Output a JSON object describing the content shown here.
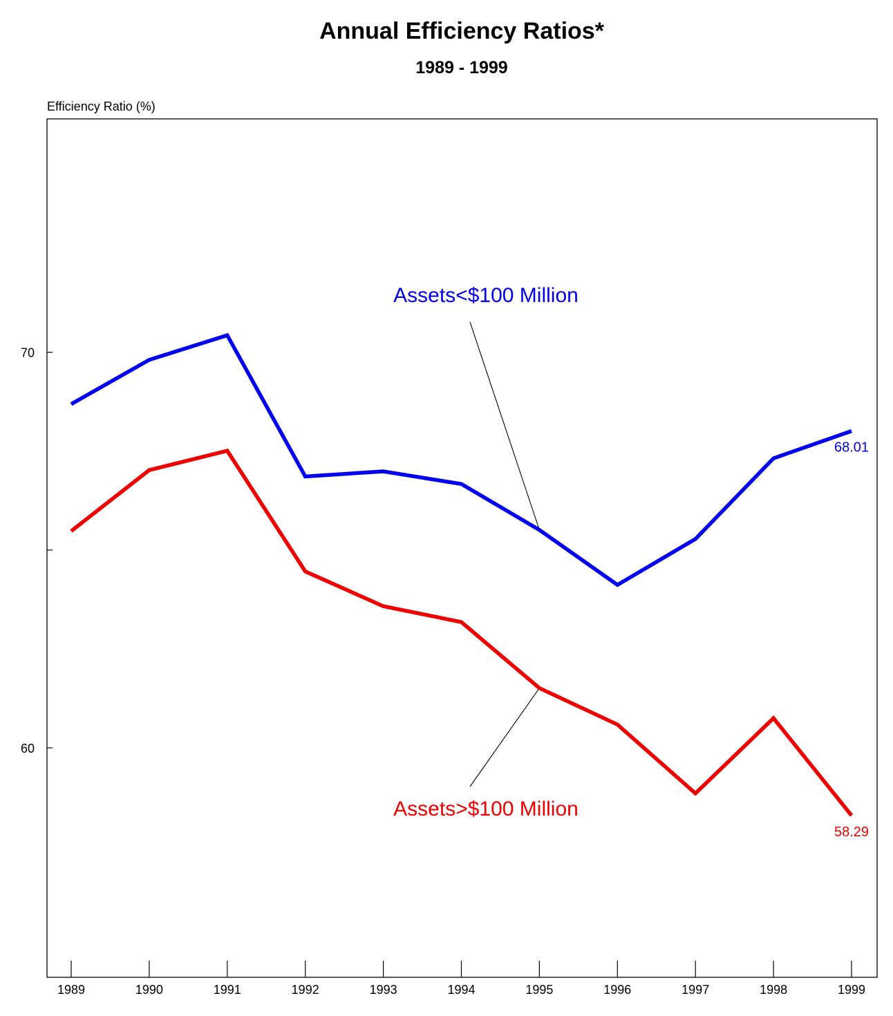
{
  "chart_data": {
    "type": "line",
    "title": "Annual Efficiency Ratios*",
    "subtitle": "1989 - 1999",
    "ylabel": "Efficiency Ratio (%)",
    "xlabel": "",
    "categories": [
      "1989",
      "1990",
      "1991",
      "1992",
      "1993",
      "1994",
      "1995",
      "1996",
      "1997",
      "1998",
      "1999"
    ],
    "ylim": [
      54.2,
      75.9
    ],
    "yticks": [
      {
        "value": 70,
        "label": "70"
      },
      {
        "value": 65,
        "label": ""
      },
      {
        "value": 60,
        "label": "60"
      }
    ],
    "grid": false,
    "series": [
      {
        "name": "Assets<$100 Million",
        "color": "#0000ee",
        "values": [
          68.69,
          69.81,
          70.43,
          66.86,
          66.99,
          66.67,
          65.51,
          64.12,
          65.28,
          67.32,
          68.01
        ],
        "end_label": "68.01",
        "callout_index": 6
      },
      {
        "name": "Assets>$100 Million",
        "color": "#ee0000",
        "values": [
          65.48,
          67.02,
          67.51,
          64.46,
          63.58,
          63.18,
          61.51,
          60.59,
          58.85,
          60.75,
          58.29
        ],
        "end_label": "58.29",
        "callout_index": 6
      }
    ]
  }
}
